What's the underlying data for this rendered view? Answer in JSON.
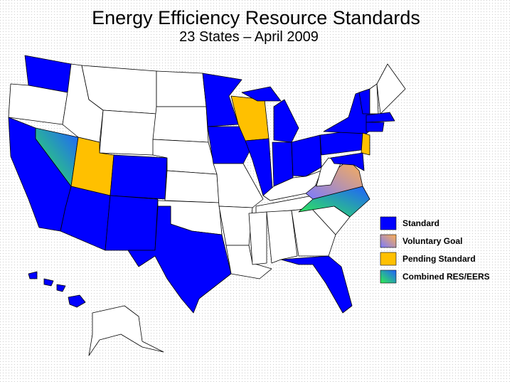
{
  "header": {
    "title": "Energy Efficiency Resource Standards",
    "subtitle": "23 States – April 2009"
  },
  "legend": [
    {
      "label": "Standard",
      "colors": [
        "#0000ff"
      ]
    },
    {
      "label": "Voluntary Goal",
      "colors": [
        "#7a7aff",
        "#ffb050"
      ]
    },
    {
      "label": "Pending Standard",
      "colors": [
        "#ffc000"
      ]
    },
    {
      "label": "Combined RES/EERS",
      "colors": [
        "#30ee50",
        "#2060ff"
      ]
    }
  ]
}
